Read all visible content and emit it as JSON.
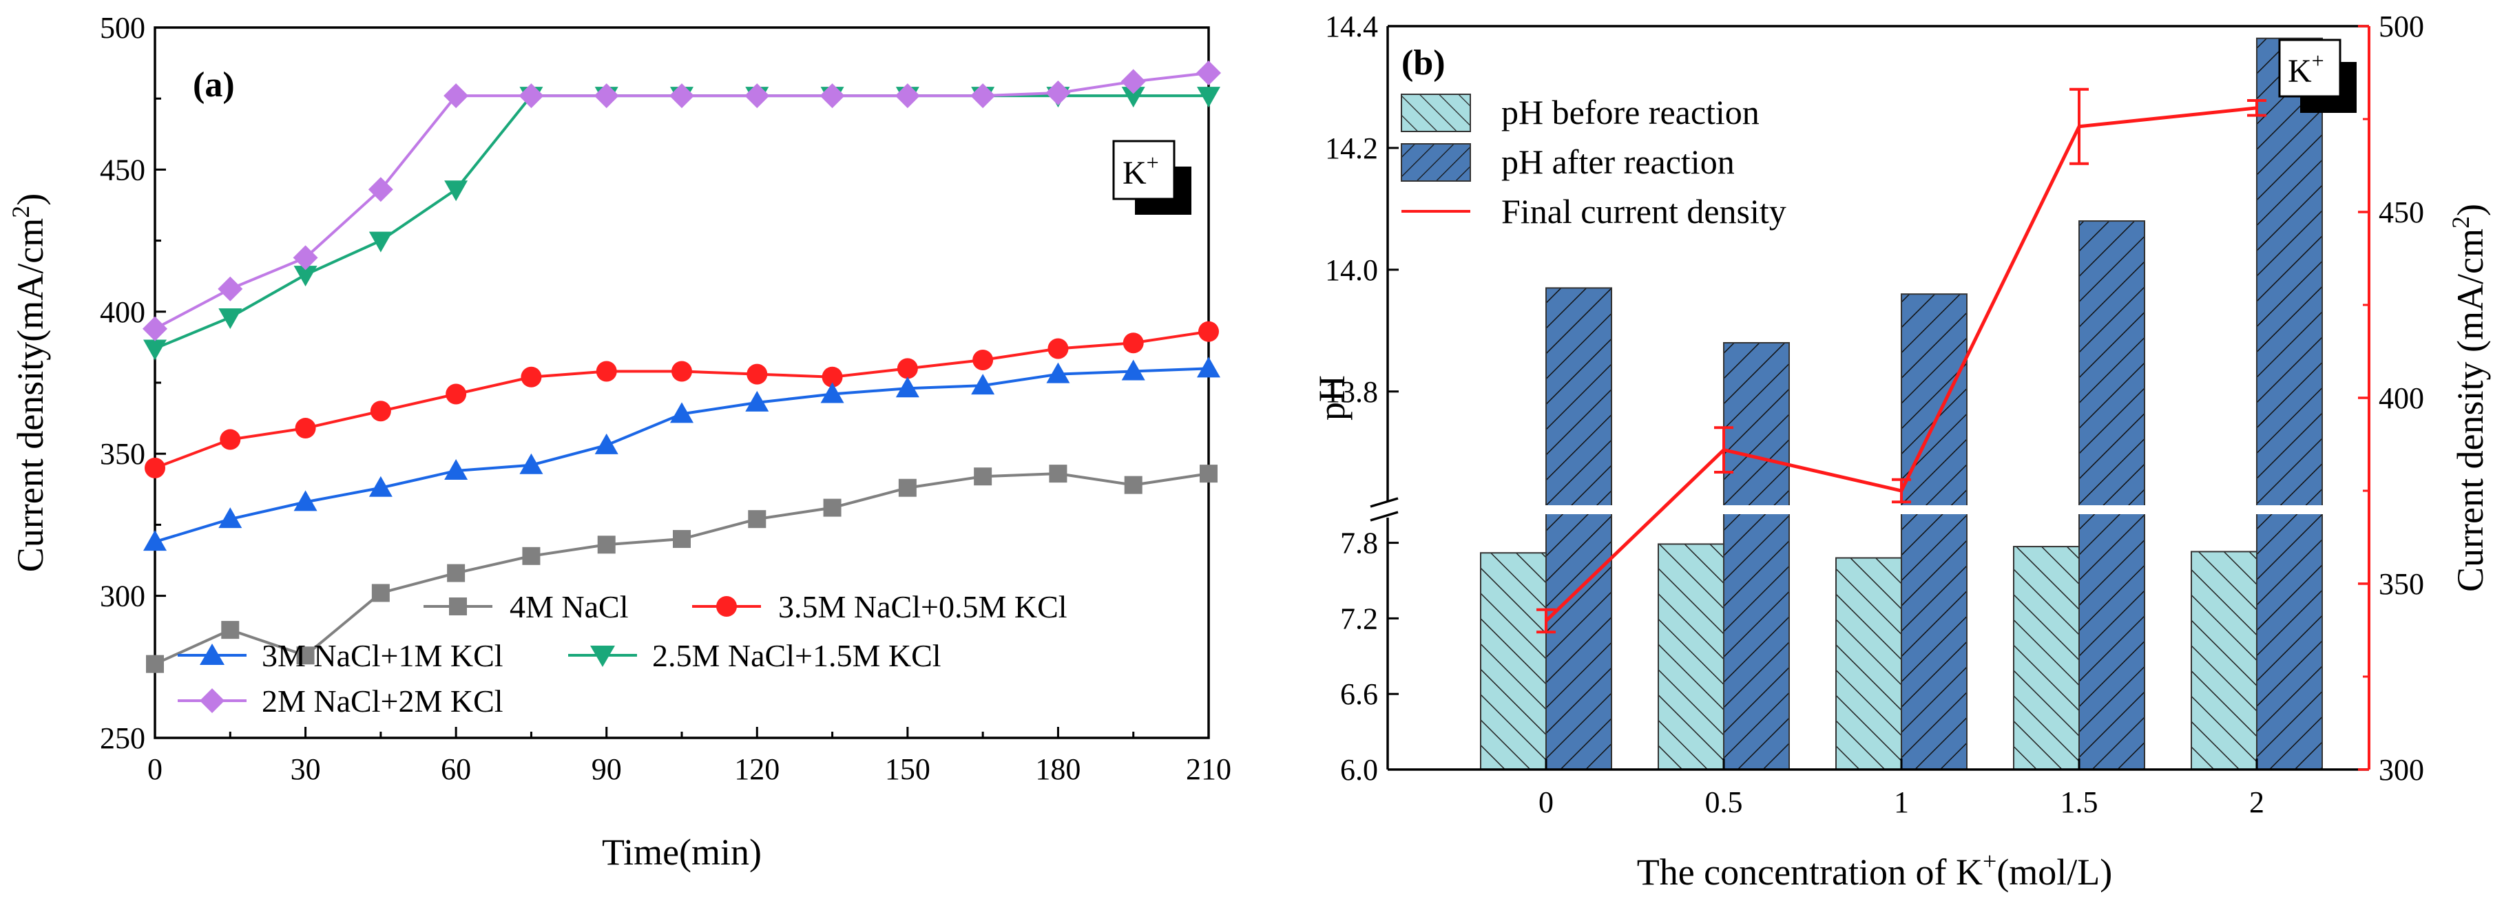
{
  "chart_data": [
    {
      "panel": "(a)",
      "type": "line",
      "xlabel": "Time(min)",
      "ylabel": "Current density(mA/cm",
      "ylabel_sup": "2",
      "ylabel_end": ")",
      "xlim": [
        0,
        210
      ],
      "ylim": [
        250,
        500
      ],
      "xticks": [
        "0",
        "30",
        "60",
        "90",
        "120",
        "150",
        "180",
        "210"
      ],
      "yticks": [
        "250",
        "300",
        "350",
        "400",
        "450",
        "500"
      ],
      "badge": {
        "main": "K",
        "sup": "+"
      },
      "x": [
        0,
        15,
        30,
        45,
        60,
        75,
        90,
        105,
        120,
        135,
        150,
        165,
        180,
        195,
        210
      ],
      "series": [
        {
          "name": "4M NaCl",
          "color": "#808080",
          "marker": "square",
          "values": [
            276,
            288,
            279,
            301,
            308,
            314,
            318,
            320,
            327,
            331,
            338,
            342,
            343,
            339,
            343
          ]
        },
        {
          "name": "3.5M NaCl+0.5M KCl",
          "color": "#ff2020",
          "marker": "circle",
          "values": [
            345,
            355,
            359,
            365,
            371,
            377,
            379,
            379,
            378,
            377,
            380,
            383,
            387,
            389,
            393
          ]
        },
        {
          "name": "3M NaCl+1M KCl",
          "color": "#1a66e6",
          "marker": "triangle-up",
          "values": [
            319,
            327,
            333,
            338,
            344,
            346,
            353,
            364,
            368,
            371,
            373,
            374,
            378,
            379,
            380
          ]
        },
        {
          "name": "2.5M NaCl+1.5M KCl",
          "color": "#1aa87a",
          "marker": "triangle-down",
          "values": [
            387,
            398,
            413,
            425,
            443,
            476,
            476,
            476,
            476,
            476,
            476,
            476,
            476,
            476,
            476
          ]
        },
        {
          "name": "2M NaCl+2M KCl",
          "color": "#c07ae6",
          "marker": "diamond",
          "values": [
            394,
            408,
            419,
            443,
            476,
            476,
            476,
            476,
            476,
            476,
            476,
            476,
            477,
            481,
            484
          ]
        }
      ]
    },
    {
      "panel": "(b)",
      "type": "bar",
      "xlabel_main": "The concentration of K",
      "xlabel_sup": "+",
      "xlabel_end": "(mol/L)",
      "ylabel": "pH",
      "y2label": "Current density (mA/cm",
      "y2label_sup": "2",
      "y2label_end": ")",
      "categories": [
        "0",
        "0.5",
        "1",
        "1.5",
        "2"
      ],
      "yticks_lower": [
        "6.0",
        "6.6",
        "7.2",
        "7.8"
      ],
      "yticks_upper": [
        "13.8",
        "14.0",
        "14.2",
        "14.4"
      ],
      "y2ticks": [
        "300",
        "350",
        "400",
        "450",
        "500"
      ],
      "y_break": {
        "lower": [
          6.0,
          8.0
        ],
        "upper": [
          13.62,
          14.4
        ]
      },
      "y2lim": [
        300,
        500
      ],
      "badge": {
        "main": "K",
        "sup": "+"
      },
      "series": [
        {
          "name": "pH before reaction",
          "color": "#a8dde0",
          "values": [
            7.72,
            7.79,
            7.68,
            7.77,
            7.73
          ]
        },
        {
          "name": "pH after reaction",
          "color": "#4a7ab5",
          "values": [
            13.97,
            13.88,
            13.96,
            14.08,
            14.38
          ]
        },
        {
          "name": "Final current density",
          "color": "#ff1a1a",
          "values": [
            340,
            386,
            375,
            473,
            478
          ],
          "errors": [
            3,
            6,
            3,
            10,
            2
          ]
        }
      ]
    }
  ]
}
